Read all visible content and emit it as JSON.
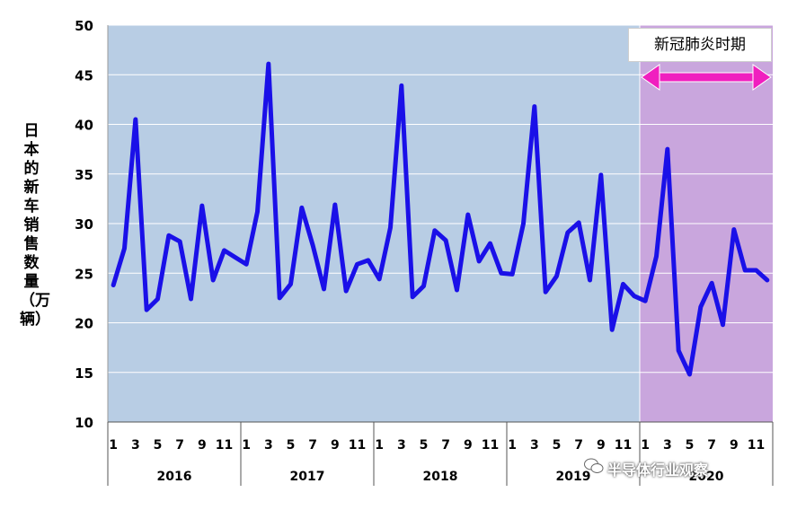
{
  "chart_data": {
    "type": "line",
    "ylabel": "日本的新车销售数量（万辆）",
    "ylim": [
      10,
      50
    ],
    "yticks": [
      10,
      15,
      20,
      25,
      30,
      35,
      40,
      45,
      50
    ],
    "years": [
      "2016",
      "2017",
      "2018",
      "2019",
      "2020"
    ],
    "month_tick_labels": [
      "1",
      "3",
      "5",
      "7",
      "9",
      "11"
    ],
    "series": [
      {
        "color": "#1a10e8",
        "values": [
          23.8,
          27.5,
          40.5,
          21.3,
          22.4,
          28.8,
          28.2,
          22.4,
          31.8,
          24.3,
          27.3,
          26.6,
          25.9,
          31.2,
          46.1,
          22.5,
          23.9,
          31.6,
          27.8,
          23.4,
          31.9,
          23.2,
          25.9,
          26.3,
          24.4,
          29.6,
          43.9,
          22.6,
          23.7,
          29.3,
          28.3,
          23.3,
          30.9,
          26.2,
          28.0,
          25.0,
          24.9,
          30.0,
          41.8,
          23.1,
          24.7,
          29.1,
          30.1,
          24.3,
          34.9,
          19.3,
          23.9,
          22.7,
          22.2,
          26.7,
          37.5,
          17.2,
          14.8,
          21.6,
          24.0,
          19.8,
          29.4,
          25.3,
          25.3,
          24.3
        ]
      }
    ],
    "covid_period": {
      "label": "新冠肺炎时期",
      "start_index": 48,
      "end_index": 59,
      "color": "#c9a6dd"
    },
    "background_color": "#b8cde4",
    "arrow_color": "#f01fbf"
  },
  "watermark": "半导体行业观察"
}
